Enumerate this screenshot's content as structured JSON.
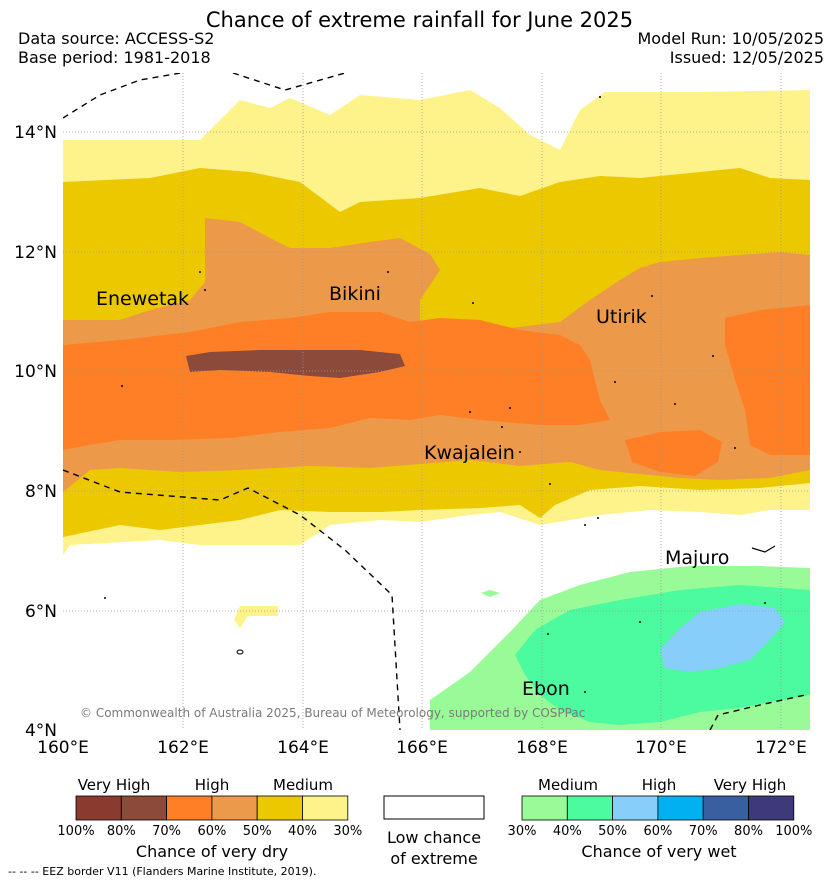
{
  "header": {
    "title": "Chance of extreme rainfall for June 2025",
    "data_source": "Data source: ACCESS-S2",
    "base_period": "Base period: 1981-2018",
    "model_run": "Model Run: 10/05/2025",
    "issued": "Issued: 12/05/2025"
  },
  "map": {
    "lat_labels": [
      "14°N",
      "12°N",
      "10°N",
      "8°N",
      "6°N",
      "4°N"
    ],
    "lon_labels": [
      "160°E",
      "162°E",
      "164°E",
      "166°E",
      "168°E",
      "170°E",
      "172°E"
    ],
    "places": [
      "Enewetak",
      "Bikini",
      "Utirik",
      "Kwajalein",
      "Majuro",
      "Ebon"
    ],
    "copyright": "© Commonwealth of Australia 2025, Bureau of Meteorology, supported by COSPPac"
  },
  "legend": {
    "dry": {
      "headers": [
        "Very High",
        "High",
        "Medium"
      ],
      "ticks": [
        "100%",
        "80%",
        "70%",
        "60%",
        "50%",
        "40%",
        "30%"
      ],
      "label": "Chance of very dry",
      "colors": [
        "#8b3a2f",
        "#8b4a3a",
        "#ff7f27",
        "#ec9a4a",
        "#ecc800",
        "#fdf38a"
      ]
    },
    "low": {
      "label_line1": "Low chance",
      "label_line2": "of extreme"
    },
    "wet": {
      "headers": [
        "Medium",
        "High",
        "Very High"
      ],
      "ticks": [
        "30%",
        "40%",
        "50%",
        "60%",
        "70%",
        "80%",
        "100%"
      ],
      "label": "Chance of very wet",
      "colors": [
        "#98fb98",
        "#4cfaa0",
        "#87cefa",
        "#00b0f0",
        "#3a5fa0",
        "#3e3a7a"
      ]
    }
  },
  "eez_note": "--  --  -- EEZ border V11 (Flanders Marine Institute, 2019)."
}
